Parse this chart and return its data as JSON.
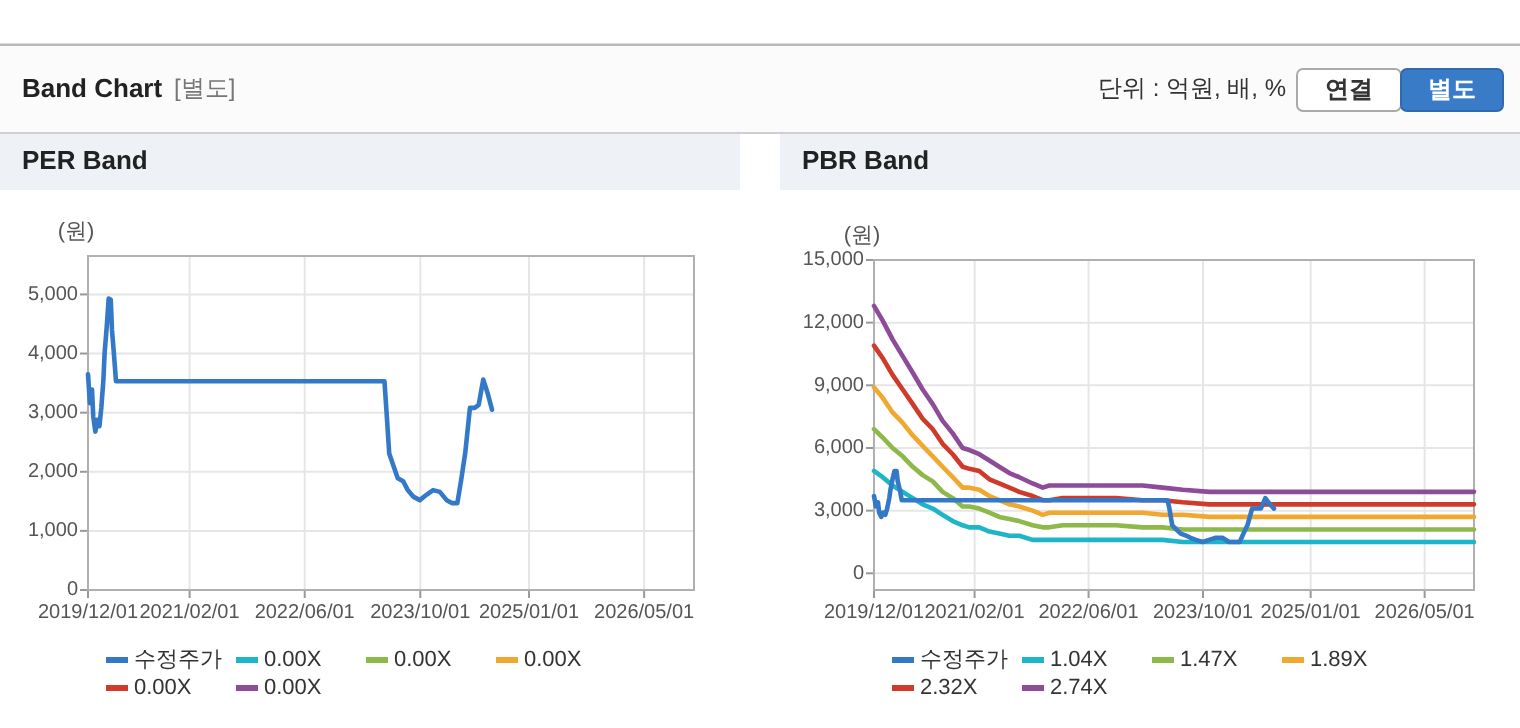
{
  "chart_data": [
    {
      "type": "other",
      "title": "Band Chart",
      "annotations": [
        "[별도]",
        "단위 : 억원, 배, %",
        "연결",
        "별도"
      ]
    },
    {
      "type": "line",
      "title": "PER Band",
      "ylabel": "(원)",
      "grid": true,
      "legend": "bottom",
      "line_style": "solid",
      "marker": "none",
      "xlim": [
        "2019-12-01",
        "2026-11-27"
      ],
      "xticks": [
        {
          "value": "2019-12-01",
          "label": "2019/12/01"
        },
        {
          "value": "2021-02-01",
          "label": "2021/02/01"
        },
        {
          "value": "2022-06-01",
          "label": "2022/06/01"
        },
        {
          "value": "2023-10-01",
          "label": "2023/10/01"
        },
        {
          "value": "2025-01-01",
          "label": "2025/01/01"
        },
        {
          "value": "2026-05-01",
          "label": "2026/05/01"
        }
      ],
      "ylim": [
        0,
        5650
      ],
      "yticks": [
        0,
        {
          "value": 1000,
          "label": "1,000"
        },
        {
          "value": 2000,
          "label": "2,000"
        },
        {
          "value": 3000,
          "label": "3,000"
        },
        {
          "value": 4000,
          "label": "4,000"
        },
        {
          "value": 5000,
          "label": "5,000"
        }
      ],
      "series": [
        {
          "name": "수정주가",
          "color": "#3478c8",
          "x": [
            "2019-12-01",
            "2019-12-09",
            "2019-12-18",
            "2019-12-23",
            "2020-01-01",
            "2020-01-09",
            "2020-01-18",
            "2020-01-26",
            "2020-02-04",
            "2020-02-09",
            "2020-02-18",
            "2020-02-26",
            "2020-03-06",
            "2020-03-11",
            "2020-03-20",
            "2020-03-28",
            "2023-05-03",
            "2023-05-11",
            "2023-05-23",
            "2023-06-09",
            "2023-06-28",
            "2023-07-21",
            "2023-08-09",
            "2023-09-01",
            "2023-09-29",
            "2023-10-27",
            "2023-11-24",
            "2023-12-22",
            "2024-01-20",
            "2024-02-11",
            "2024-03-05",
            "2024-03-21",
            "2024-04-07",
            "2024-04-27",
            "2024-05-17",
            "2024-06-03",
            "2024-06-22",
            "2024-07-12",
            "2024-07-29"
          ],
          "values": [
            3650,
            3160,
            3390,
            2940,
            2680,
            2880,
            2770,
            3080,
            3560,
            4010,
            4460,
            4930,
            4910,
            4400,
            3950,
            3530,
            3530,
            3050,
            2310,
            2110,
            1890,
            1840,
            1690,
            1580,
            1520,
            1610,
            1690,
            1660,
            1520,
            1470,
            1470,
            1860,
            2310,
            3080,
            3080,
            3130,
            3560,
            3310,
            3050
          ]
        },
        {
          "name": "0.00X",
          "color": "#1fb5c8"
        },
        {
          "name": "0.00X",
          "color": "#8db84a"
        },
        {
          "name": "0.00X",
          "color": "#f0a830"
        },
        {
          "name": "0.00X",
          "color": "#d03a2a"
        },
        {
          "name": "0.00X",
          "color": "#8d4b9a"
        }
      ]
    },
    {
      "type": "line",
      "title": "PBR Band",
      "ylabel": "(원)",
      "grid": true,
      "legend": "bottom",
      "line_style": "solid",
      "marker": "none",
      "xlim": [
        "2019-12-01",
        "2026-11-27"
      ],
      "xticks": [
        {
          "value": "2019-12-01",
          "label": "2019/12/01"
        },
        {
          "value": "2021-02-01",
          "label": "2021/02/01"
        },
        {
          "value": "2022-06-01",
          "label": "2022/06/01"
        },
        {
          "value": "2023-10-01",
          "label": "2023/10/01"
        },
        {
          "value": "2025-01-01",
          "label": "2025/01/01"
        },
        {
          "value": "2026-05-01",
          "label": "2026/05/01"
        }
      ],
      "ylim": [
        -800,
        15000
      ],
      "yticks": [
        0,
        {
          "value": 3000,
          "label": "3,000"
        },
        {
          "value": 6000,
          "label": "6,000"
        },
        {
          "value": 9000,
          "label": "9,000"
        },
        {
          "value": 12000,
          "label": "12,000"
        },
        {
          "value": 15000,
          "label": "15,000"
        }
      ],
      "x": [
        "2019-12-01",
        "2020-01-07",
        "2020-02-18",
        "2020-04-01",
        "2020-05-14",
        "2020-06-25",
        "2020-08-07",
        "2020-09-18",
        "2020-10-31",
        "2020-12-12",
        "2021-01-10",
        "2021-02-21",
        "2021-04-05",
        "2021-05-17",
        "2021-06-29",
        "2021-08-10",
        "2021-10-06",
        "2021-11-18",
        "2021-12-16",
        "2022-02-11",
        "2022-05-07",
        "2022-09-26",
        "2023-01-17",
        "2023-04-12",
        "2023-07-06",
        "2023-10-28",
        "2026-11-27"
      ],
      "series": [
        {
          "name": "수정주가",
          "color": "#3478c8",
          "x": [
            "2019-12-01",
            "2019-12-09",
            "2019-12-18",
            "2019-12-23",
            "2020-01-01",
            "2020-01-09",
            "2020-01-18",
            "2020-01-26",
            "2020-02-04",
            "2020-02-09",
            "2020-02-18",
            "2020-02-26",
            "2020-03-06",
            "2020-03-11",
            "2020-03-20",
            "2020-03-28",
            "2023-05-03",
            "2023-05-11",
            "2023-05-23",
            "2023-06-09",
            "2023-06-28",
            "2023-07-21",
            "2023-08-09",
            "2023-09-01",
            "2023-09-29",
            "2023-10-27",
            "2023-11-24",
            "2023-12-22",
            "2024-01-20",
            "2024-02-11",
            "2024-03-05",
            "2024-03-21",
            "2024-04-07",
            "2024-04-27",
            "2024-05-17",
            "2024-06-03",
            "2024-06-22",
            "2024-07-12",
            "2024-07-29"
          ],
          "values": [
            3700,
            3200,
            3400,
            2900,
            2700,
            2900,
            2800,
            3100,
            3600,
            4000,
            4500,
            4900,
            4900,
            4400,
            4000,
            3500,
            3500,
            3100,
            2300,
            2100,
            1900,
            1800,
            1700,
            1600,
            1500,
            1600,
            1700,
            1700,
            1500,
            1500,
            1500,
            1900,
            2300,
            3100,
            3100,
            3100,
            3600,
            3300,
            3100
          ]
        },
        {
          "name": "1.04X",
          "color": "#1fb5c8",
          "values": [
            4900,
            4600,
            4200,
            3900,
            3600,
            3300,
            3100,
            2800,
            2500,
            2300,
            2200,
            2200,
            2000,
            1900,
            1800,
            1800,
            1600,
            1600,
            1600,
            1600,
            1600,
            1600,
            1600,
            1600,
            1500,
            1500,
            1500
          ]
        },
        {
          "name": "1.47X",
          "color": "#8db84a",
          "values": [
            6900,
            6500,
            6000,
            5600,
            5100,
            4700,
            4400,
            3900,
            3600,
            3200,
            3200,
            3100,
            2900,
            2700,
            2600,
            2500,
            2300,
            2200,
            2200,
            2300,
            2300,
            2300,
            2200,
            2200,
            2100,
            2100,
            2100
          ]
        },
        {
          "name": "1.89X",
          "color": "#f0a830",
          "values": [
            8900,
            8400,
            7700,
            7200,
            6600,
            6100,
            5600,
            5100,
            4600,
            4100,
            4100,
            4000,
            3700,
            3500,
            3300,
            3200,
            3000,
            2800,
            2900,
            2900,
            2900,
            2900,
            2900,
            2800,
            2800,
            2700,
            2700
          ]
        },
        {
          "name": "2.32X",
          "color": "#d03a2a",
          "values": [
            10900,
            10300,
            9500,
            8800,
            8100,
            7400,
            6900,
            6200,
            5700,
            5100,
            5000,
            4900,
            4500,
            4300,
            4100,
            3900,
            3700,
            3500,
            3500,
            3600,
            3600,
            3600,
            3500,
            3500,
            3400,
            3300,
            3300
          ]
        },
        {
          "name": "2.74X",
          "color": "#8d4b9a",
          "values": [
            12800,
            12100,
            11200,
            10400,
            9600,
            8800,
            8100,
            7300,
            6700,
            6000,
            5900,
            5700,
            5400,
            5100,
            4800,
            4600,
            4300,
            4100,
            4200,
            4200,
            4200,
            4200,
            4200,
            4100,
            4000,
            3900,
            3900
          ]
        }
      ]
    }
  ]
}
